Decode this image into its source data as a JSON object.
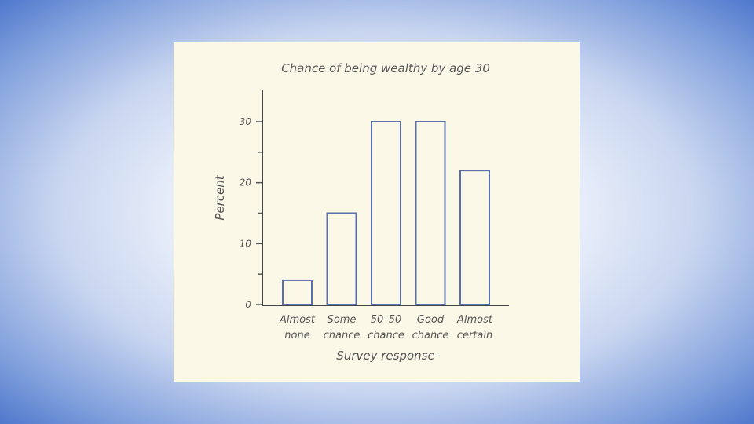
{
  "chart_data": {
    "type": "bar",
    "title": "Chance of being wealthy by age 30",
    "xlabel": "Survey response",
    "ylabel": "Percent",
    "categories": [
      [
        "Almost",
        "none"
      ],
      [
        "Some",
        "chance"
      ],
      [
        "50–50",
        "chance"
      ],
      [
        "Good",
        "chance"
      ],
      [
        "Almost",
        "certain"
      ]
    ],
    "values": [
      4,
      15,
      30,
      30,
      22
    ],
    "ylim": [
      0,
      35
    ],
    "yticks": [
      0,
      10,
      20,
      30
    ],
    "minor_yticks": [
      5,
      15,
      25
    ],
    "grid": false,
    "colors": {
      "bar_stroke": "#5a70a8",
      "bar_fill": "#fcf8e8",
      "axis": "#444444",
      "panel": "#fcf8e8"
    }
  }
}
